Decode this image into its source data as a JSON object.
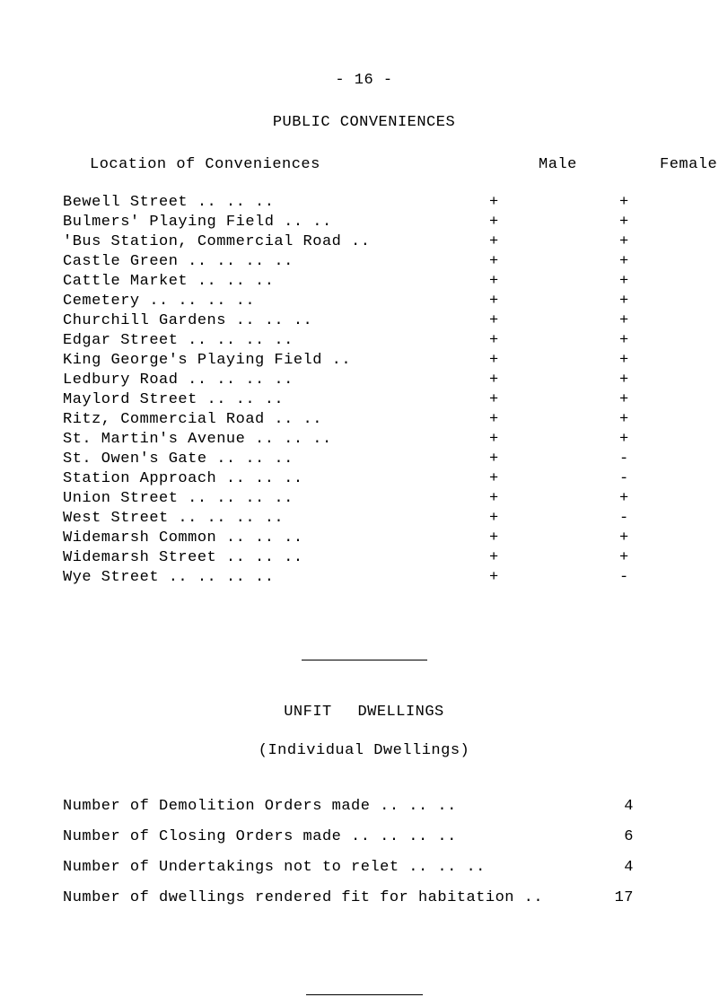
{
  "page_number": "- 16 -",
  "main_title": "PUBLIC CONVENIENCES",
  "headers": {
    "location": "Location of Conveniences",
    "male": "Male",
    "female": "Female"
  },
  "conveniences": [
    {
      "name": "Bewell Street",
      "fill": "      ..      ..     ..",
      "male": "+",
      "female": "+"
    },
    {
      "name": "Bulmers' Playing Field",
      "fill": "    ..    ..",
      "male": "+",
      "female": "+"
    },
    {
      "name": "'Bus Station, Commercial Road",
      "fill": "   ..",
      "male": "+",
      "female": "+"
    },
    {
      "name": "Castle Green ..",
      "fill": "    ..      ..     ..",
      "male": "+",
      "female": "+"
    },
    {
      "name": "Cattle Market",
      "fill": "      ..      ..     ..",
      "male": "+",
      "female": "+"
    },
    {
      "name": "Cemetery",
      "fill": "    ..     ..      ..     ..",
      "male": "+",
      "female": "+"
    },
    {
      "name": "Churchill Gardens",
      "fill": "   ..     ..     ..",
      "male": "+",
      "female": "+"
    },
    {
      "name": "Edgar Street ..",
      "fill": "     ..     ..     ..",
      "male": "+",
      "female": "+"
    },
    {
      "name": "King George's Playing Field",
      "fill": "      ..",
      "male": "+",
      "female": "+"
    },
    {
      "name": "Ledbury Road ..",
      "fill": "     ..     ..     ..",
      "male": "+",
      "female": "+"
    },
    {
      "name": "Maylord Street",
      "fill": "     ..     ..     ..",
      "male": "+",
      "female": "+"
    },
    {
      "name": "Ritz, Commercial Road",
      "fill": "    ..     ..",
      "male": "+",
      "female": "+"
    },
    {
      "name": "St. Martin's Avenue ..",
      "fill": "    ..     ..",
      "male": "+",
      "female": "+"
    },
    {
      "name": "St. Owen's Gate",
      "fill": "    ..     ..     ..",
      "male": "+",
      "female": "-"
    },
    {
      "name": "Station Approach",
      "fill": "   ..     ..     ..",
      "male": "+",
      "female": "-"
    },
    {
      "name": "Union Street ..",
      "fill": "    ..     ..     ..",
      "male": "+",
      "female": "+"
    },
    {
      "name": "West Street",
      "fill": "  ..     ..     ..     ..",
      "male": "+",
      "female": "-"
    },
    {
      "name": "Widemarsh Common",
      "fill": "    ..     ..     ..",
      "male": "+",
      "female": "+"
    },
    {
      "name": "Widemarsh Street",
      "fill": "    ..     ..     ..",
      "male": "+",
      "female": "+"
    },
    {
      "name": "Wye Street",
      "fill": "   ..    ..    ..    ..",
      "male": "+",
      "female": "-"
    }
  ],
  "section2_title": "UNFIT   DWELLINGS",
  "section2_subtitle": "(Individual Dwellings)",
  "unfit": [
    {
      "label": "Number of Demolition Orders made     ..     ..     ..",
      "value": "4"
    },
    {
      "label": "Number of Closing Orders made ..     ..     ..     ..",
      "value": "6"
    },
    {
      "label": "Number of Undertakings not to relet  ..     ..     ..",
      "value": "4"
    },
    {
      "label": "Number of dwellings rendered fit for habitation    ..",
      "value": "17"
    }
  ]
}
